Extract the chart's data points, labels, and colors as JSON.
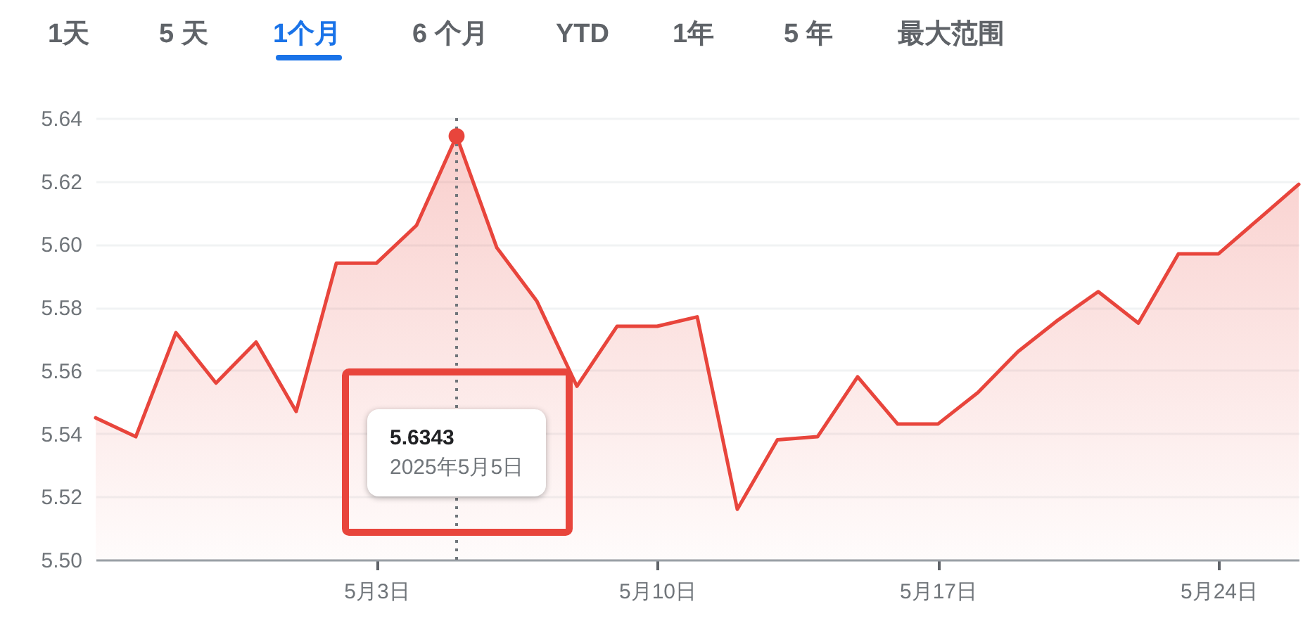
{
  "chart_data": {
    "type": "area",
    "annotations": [
      "1天",
      "5 天",
      "1个月",
      "6 个月",
      "YTD",
      "1年",
      "5 年",
      "最大范围",
      "5.6343",
      "2025年5月5日"
    ],
    "x": [
      "2025-04-26",
      "2025-04-27",
      "2025-04-28",
      "2025-04-29",
      "2025-04-30",
      "2025-05-01",
      "2025-05-02",
      "2025-05-03",
      "2025-05-04",
      "2025-05-05",
      "2025-05-06",
      "2025-05-07",
      "2025-05-08",
      "2025-05-09",
      "2025-05-10",
      "2025-05-11",
      "2025-05-12",
      "2025-05-13",
      "2025-05-14",
      "2025-05-15",
      "2025-05-16",
      "2025-05-17",
      "2025-05-18",
      "2025-05-19",
      "2025-05-20",
      "2025-05-21",
      "2025-05-22",
      "2025-05-23",
      "2025-05-24",
      "2025-05-25",
      "2025-05-26"
    ],
    "series": [
      {
        "color": "#e8453c",
        "values": [
          5.545,
          5.539,
          5.572,
          5.556,
          5.569,
          5.547,
          5.594,
          5.594,
          5.606,
          5.6343,
          5.599,
          5.582,
          5.555,
          5.574,
          5.574,
          5.577,
          5.516,
          5.538,
          5.539,
          5.558,
          5.543,
          5.543,
          5.553,
          5.566,
          5.576,
          5.585,
          5.575,
          5.597,
          5.597,
          5.608,
          5.619
        ]
      },
      {
        "type": "scatter",
        "color": "#e8453c",
        "x": [
          "2025-05-05"
        ],
        "values": [
          5.6343
        ]
      }
    ],
    "xlim": [
      "2025-04-26",
      "2025-05-26"
    ],
    "xticks": [
      {
        "value": "2025-05-03",
        "label": "5月3日"
      },
      {
        "value": "2025-05-10",
        "label": "5月10日"
      },
      {
        "value": "2025-05-17",
        "label": "5月17日"
      },
      {
        "value": "2025-05-24",
        "label": "5月24日"
      }
    ],
    "ylim": [
      5.5,
      5.64
    ],
    "yticks": [
      {
        "value": 5.5,
        "label": "5.50"
      },
      {
        "value": 5.52,
        "label": "5.52"
      },
      {
        "value": 5.54,
        "label": "5.54"
      },
      {
        "value": 5.56,
        "label": "5.56"
      },
      {
        "value": 5.58,
        "label": "5.58"
      },
      {
        "value": 5.6,
        "label": "5.60"
      },
      {
        "value": 5.62,
        "label": "5.62"
      },
      {
        "value": 5.64,
        "label": "5.64"
      }
    ],
    "grid": "y",
    "ref_lines": [
      {
        "axis": "x",
        "value": "2025-05-05",
        "color": "#70757a",
        "line_style": "dotted"
      }
    ]
  }
}
